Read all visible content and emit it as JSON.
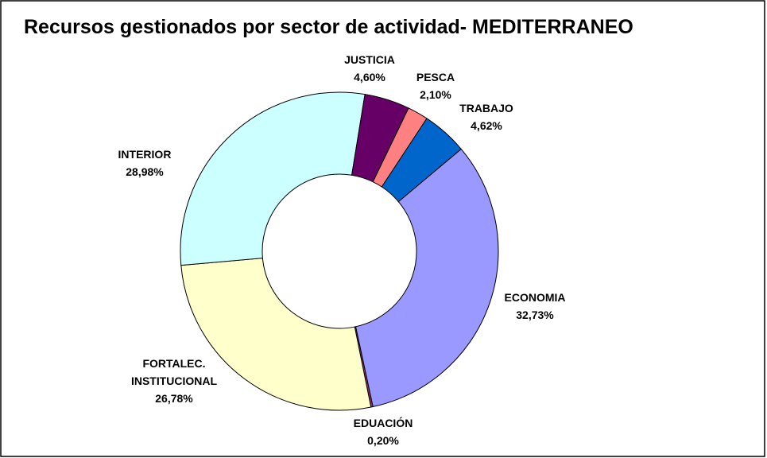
{
  "chart_data": {
    "type": "donut",
    "title": "Recursos gestionados por sector de actividad- MEDITERRANEO",
    "categories": [
      "ECONOMIA",
      "EDUACIÓN",
      "FORTALEC. INSTITUCIONAL",
      "INTERIOR",
      "JUSTICIA",
      "PESCA",
      "TRABAJO"
    ],
    "values": [
      32.73,
      0.2,
      26.78,
      28.98,
      4.6,
      2.1,
      4.62
    ],
    "value_labels": [
      "32,73%",
      "0,20%",
      "26,78%",
      "28,98%",
      "4,60%",
      "2,10%",
      "4,62%"
    ],
    "colors": [
      "#9999ff",
      "#993366",
      "#ffffcc",
      "#ccffff",
      "#660066",
      "#ff8080",
      "#0066cc"
    ],
    "start_angle": 50
  }
}
